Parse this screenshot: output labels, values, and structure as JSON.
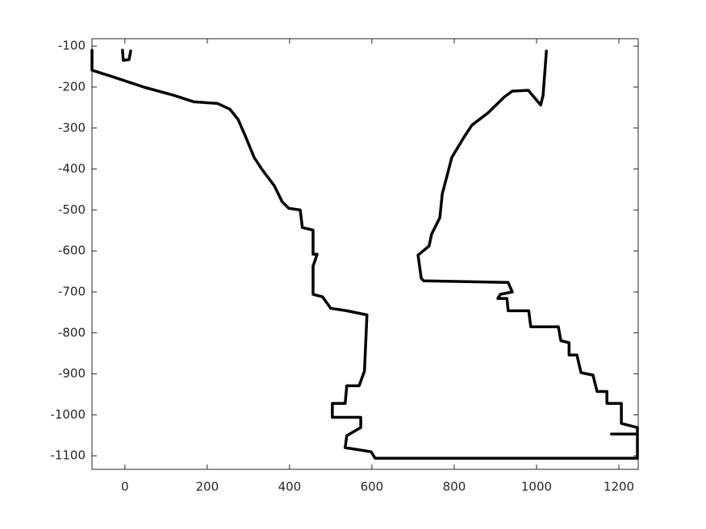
{
  "chart_data": {
    "type": "line",
    "color": "#000000",
    "x": [
      -80,
      -80,
      -29,
      49,
      118,
      167,
      225,
      255,
      275,
      294,
      314,
      333,
      363,
      382,
      398,
      426,
      431,
      457,
      457,
      467,
      457,
      457,
      480,
      500,
      539,
      588,
      582,
      569,
      539,
      535,
      504,
      504,
      573,
      573,
      539,
      535,
      598,
      608,
      1245,
      1245,
      1206,
      1206,
      1171,
      1171,
      1147,
      1137,
      1108,
      1098,
      1079,
      1079,
      1059,
      1053,
      986,
      981,
      931,
      928,
      906,
      912,
      941,
      931,
      726,
      720,
      712,
      739,
      745,
      765,
      771,
      784,
      794,
      824,
      843,
      882,
      922,
      941,
      980,
      1010,
      1016,
      1024,
      null,
      -6,
      -4,
      10,
      14,
      null,
      1182,
      1245
    ],
    "values": [
      -110,
      -159,
      -175,
      -201,
      -220,
      -236,
      -240,
      -254,
      -279,
      -323,
      -372,
      -401,
      -441,
      -480,
      -496,
      -500,
      -543,
      -549,
      -608,
      -608,
      -637,
      -706,
      -712,
      -740,
      -746,
      -756,
      -893,
      -929,
      -929,
      -972,
      -972,
      -1006,
      -1006,
      -1031,
      -1051,
      -1080,
      -1090,
      -1106,
      -1106,
      -1031,
      -1021,
      -972,
      -972,
      -943,
      -943,
      -903,
      -897,
      -854,
      -854,
      -824,
      -819,
      -785,
      -785,
      -746,
      -746,
      -716,
      -716,
      -706,
      -700,
      -677,
      -673,
      -667,
      -610,
      -588,
      -559,
      -519,
      -460,
      -411,
      -372,
      -322,
      -293,
      -263,
      -224,
      -210,
      -208,
      -244,
      -220,
      -112,
      null,
      -110,
      -135,
      -133,
      -112,
      null,
      -1047,
      -1047
    ],
    "xlim": [
      -80,
      1247
    ],
    "ylim": [
      -1133,
      -82
    ],
    "xticks": [
      0,
      200,
      400,
      600,
      800,
      1000,
      1200
    ],
    "yticks": [
      -1100,
      -1000,
      -900,
      -800,
      -700,
      -600,
      -500,
      -400,
      -300,
      -200,
      -100
    ],
    "grid": false
  }
}
